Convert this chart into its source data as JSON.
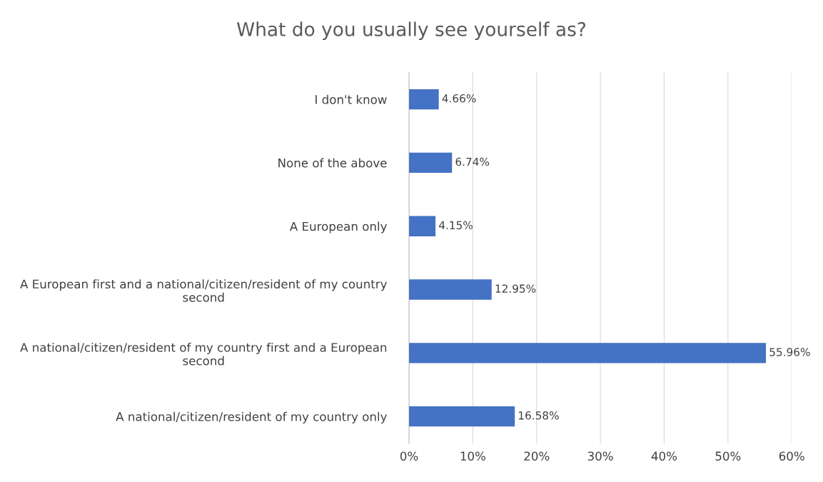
{
  "chart_data": {
    "type": "bar",
    "orientation": "horizontal",
    "title": "What do you usually see yourself as?",
    "categories": [
      "I don't know",
      "None of the above",
      "A European only",
      "A European first and a national/citizen/resident of my country second",
      "A national/citizen/resident of my country first and a European second",
      "A national/citizen/resident of my country only"
    ],
    "values": [
      4.66,
      6.74,
      4.15,
      12.95,
      55.96,
      16.58
    ],
    "value_labels": [
      "4.66%",
      "6.74%",
      "4.15%",
      "12.95%",
      "55.96%",
      "16.58%"
    ],
    "color": "#4472c4",
    "xlim": [
      0,
      60
    ],
    "xticks": [
      {
        "value": 0,
        "label": "0%"
      },
      {
        "value": 10,
        "label": "10%"
      },
      {
        "value": 20,
        "label": "20%"
      },
      {
        "value": 30,
        "label": "30%"
      },
      {
        "value": 40,
        "label": "40%"
      },
      {
        "value": 50,
        "label": "50%"
      },
      {
        "value": 60,
        "label": "60%"
      }
    ],
    "grid": "x",
    "legend": false
  }
}
